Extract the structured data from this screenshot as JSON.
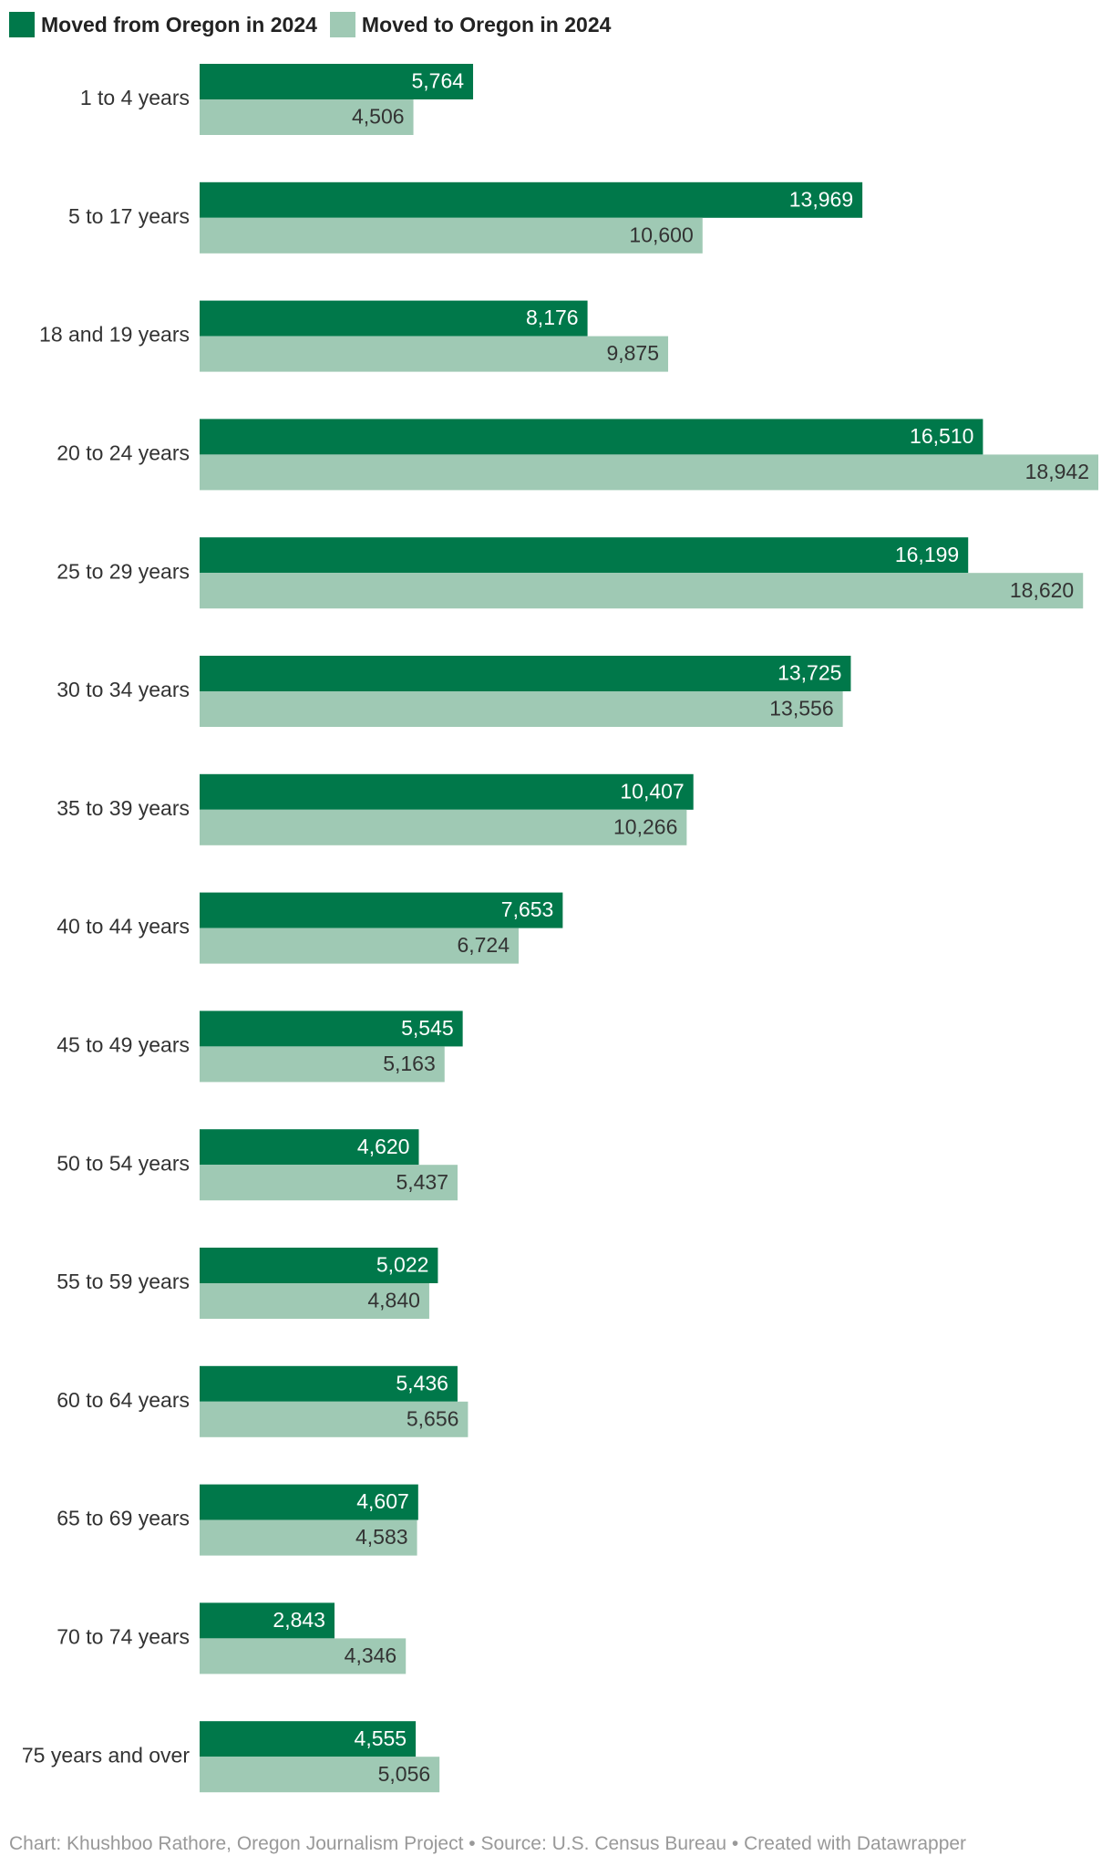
{
  "chart_data": {
    "type": "bar",
    "orientation": "horizontal",
    "categories": [
      "1 to 4 years",
      "5 to 17 years",
      "18 and 19 years",
      "20 to 24 years",
      "25 to 29 years",
      "30 to 34 years",
      "35 to 39 years",
      "40 to 44 years",
      "45 to 49 years",
      "50 to 54 years",
      "55 to 59 years",
      "60 to 64 years",
      "65 to 69 years",
      "70 to 74 years",
      "75 years and over"
    ],
    "series": [
      {
        "name": "Moved from Oregon in 2024",
        "color": "#00784a",
        "label_color": "#ffffff",
        "values": [
          5764,
          13969,
          8176,
          16510,
          16199,
          13725,
          10407,
          7653,
          5545,
          4620,
          5022,
          5436,
          4607,
          2843,
          4555
        ],
        "labels": [
          "5,764",
          "13,969",
          "8,176",
          "16,510",
          "16,199",
          "13,725",
          "10,407",
          "7,653",
          "5,545",
          "4,620",
          "5,022",
          "5,436",
          "4,607",
          "2,843",
          "4,555"
        ]
      },
      {
        "name": "Moved to Oregon in 2024",
        "color": "#9fc9b4",
        "label_color": "#333333",
        "values": [
          4506,
          10600,
          9875,
          18942,
          18620,
          13556,
          10266,
          6724,
          5163,
          5437,
          4840,
          5656,
          4583,
          4346,
          5056
        ],
        "labels": [
          "4,506",
          "10,600",
          "9,875",
          "18,942",
          "18,620",
          "13,556",
          "10,266",
          "6,724",
          "5,163",
          "5,437",
          "4,840",
          "5,656",
          "4,583",
          "4,346",
          "5,056"
        ]
      }
    ],
    "xlim": [
      0,
      18942
    ],
    "grid": false,
    "legend": "top-left"
  },
  "footer": "Chart: Khushboo Rathore, Oregon Journalism Project • Source: U.S. Census Bureau • Created with Datawrapper"
}
